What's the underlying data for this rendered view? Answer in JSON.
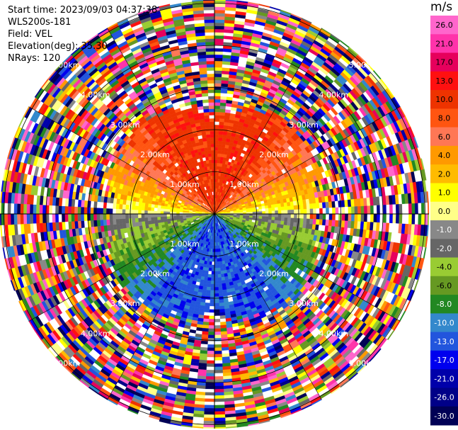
{
  "info": {
    "start_time": "Start time: 2023/09/03 04:37:38",
    "instrument": "WLS200s-181",
    "field": "Field: VEL",
    "elevation": "Elevation(deg): 35.30",
    "nrays": "NRays: 120"
  },
  "chart_data": {
    "type": "heatmap",
    "title": "",
    "field": "VEL",
    "units": "m/s",
    "n_rays": 120,
    "range_rings_km": [
      1.0,
      2.0,
      3.0,
      4.0,
      5.0
    ],
    "ring_labels": [
      "1.00km",
      "2.00km",
      "3.00km",
      "4.00km",
      "5.00km"
    ],
    "colorbar": {
      "unit_label": "m/s",
      "tick_labels": [
        "26.0",
        "21.0",
        "17.0",
        "13.0",
        "10.0",
        "8.0",
        "6.0",
        "4.0",
        "2.0",
        "1.0",
        "0.0",
        "-1.0",
        "-2.0",
        "-4.0",
        "-6.0",
        "-8.0",
        "-10.0",
        "-13.0",
        "-17.0",
        "-21.0",
        "-26.0",
        "-30.0"
      ],
      "colors": [
        "#ff66cc",
        "#ff33aa",
        "#e6005c",
        "#ff1010",
        "#ee3300",
        "#ff5511",
        "#ff7755",
        "#ff9900",
        "#ffbb00",
        "#ffff00",
        "#ffff88",
        "#888888",
        "#666666",
        "#99cc33",
        "#669922",
        "#228822",
        "#3388cc",
        "#2255dd",
        "#0000ee",
        "#0000aa",
        "#000088",
        "#000055"
      ]
    }
  }
}
